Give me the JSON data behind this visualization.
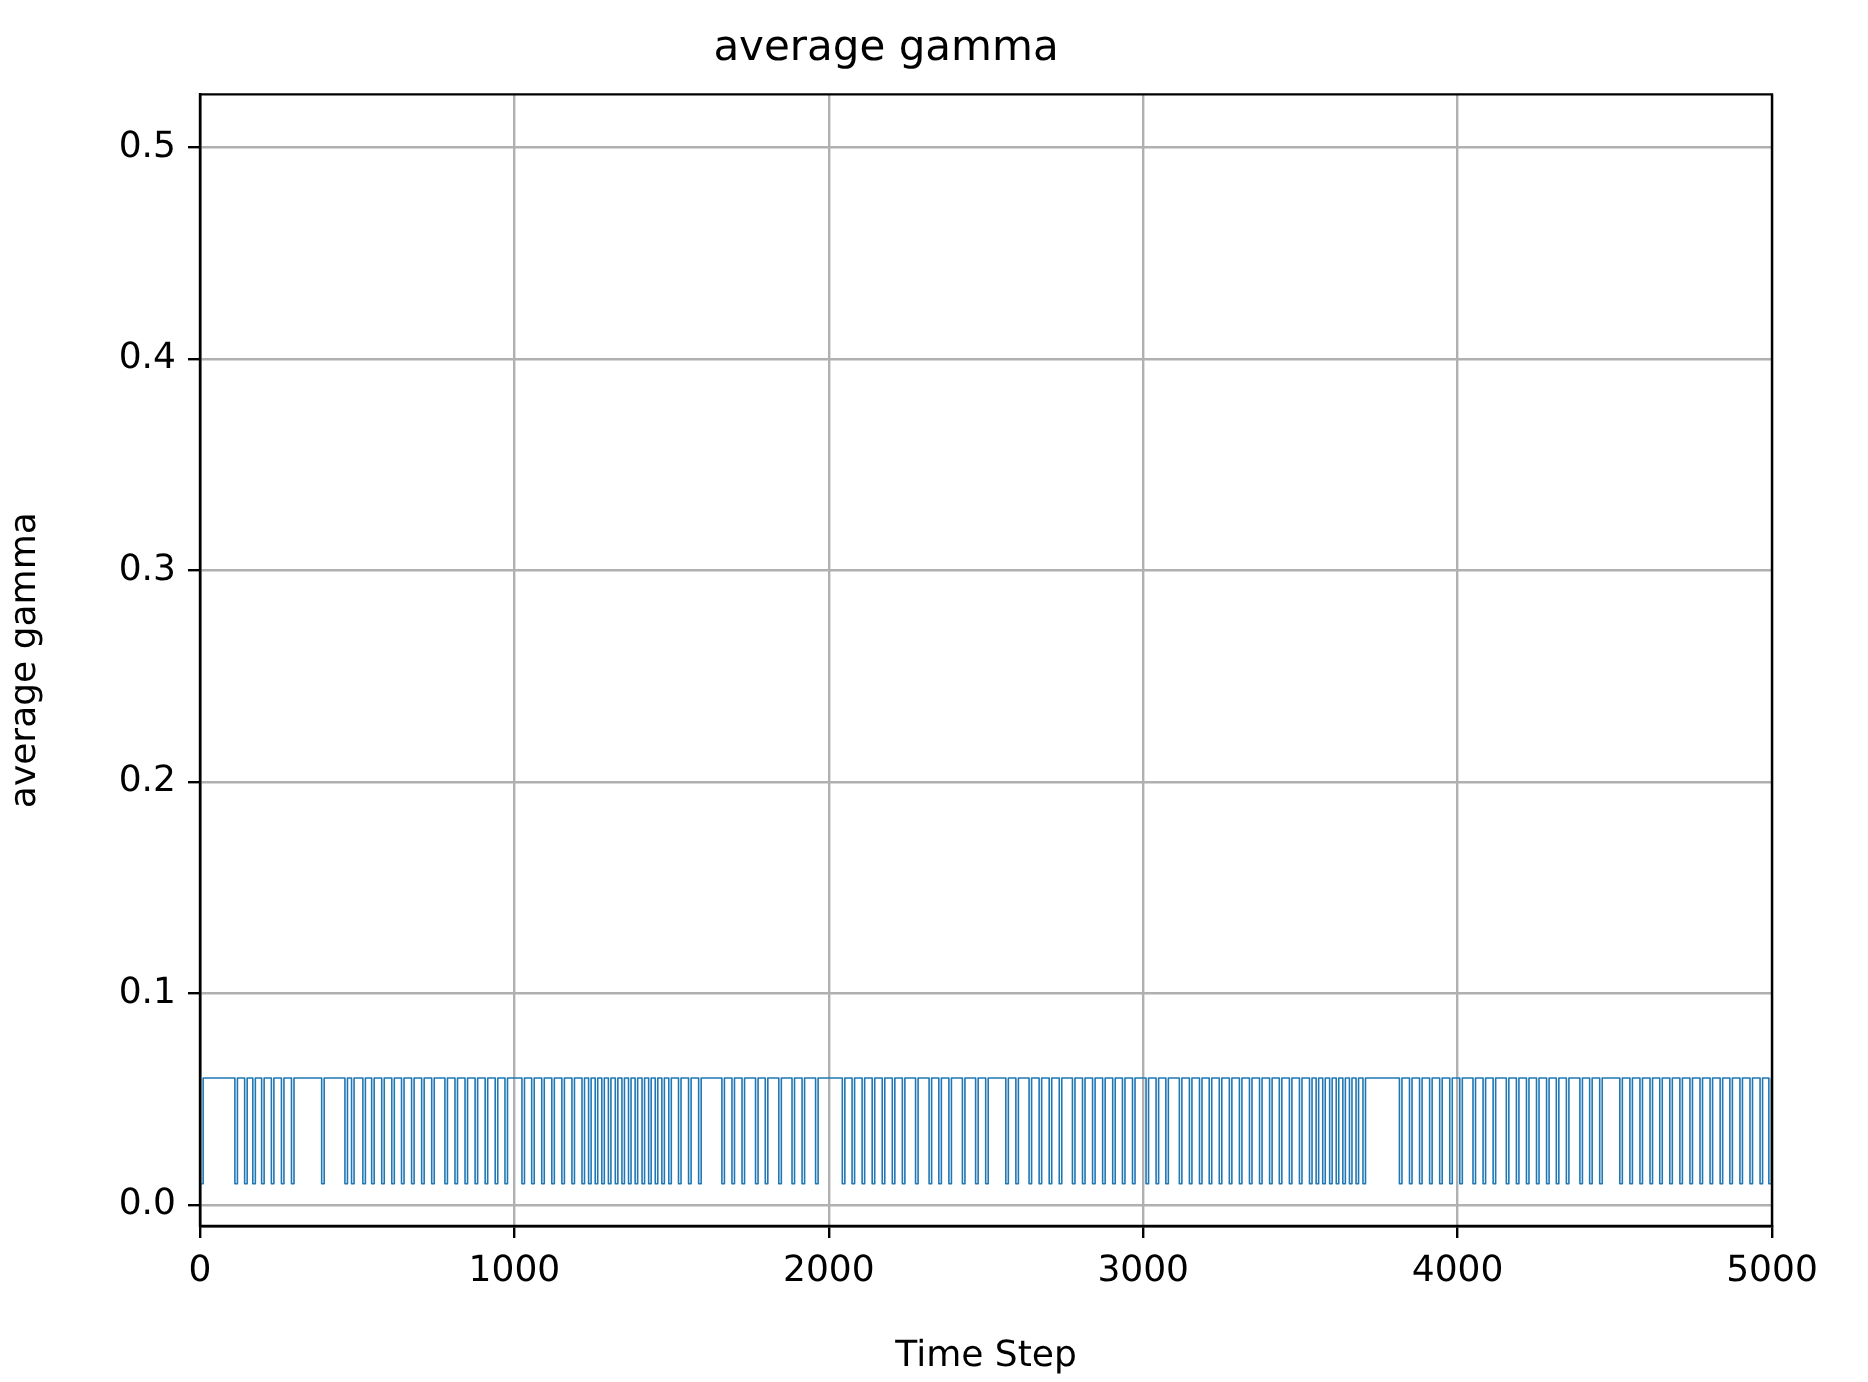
{
  "chart_data": {
    "type": "step",
    "title": "average gamma",
    "xlabel": "Time Step",
    "ylabel": "average gamma",
    "xlim": [
      0,
      5000
    ],
    "xticks": [
      0,
      1000,
      2000,
      3000,
      4000,
      5000
    ],
    "ylim": [
      -0.01,
      0.525
    ],
    "yticks": [
      {
        "value": 0,
        "label": "0.0"
      },
      0.1,
      0.2,
      0.3,
      0.4,
      0.5
    ],
    "grid": true,
    "series": [
      {
        "color": "#1f77b4",
        "x": [
          0,
          10,
          111,
          119,
          142,
          150,
          168,
          176,
          196,
          204,
          227,
          235,
          259,
          267,
          291,
          299,
          387,
          395,
          461,
          469,
          482,
          490,
          518,
          526,
          546,
          554,
          578,
          586,
          610,
          618,
          641,
          649,
          673,
          681,
          705,
          713,
          737,
          745,
          779,
          787,
          811,
          819,
          843,
          851,
          875,
          883,
          907,
          915,
          939,
          947,
          970,
          978,
          1024,
          1032,
          1055,
          1063,
          1087,
          1095,
          1119,
          1127,
          1151,
          1159,
          1183,
          1191,
          1215,
          1223,
          1236,
          1244,
          1257,
          1265,
          1278,
          1286,
          1299,
          1307,
          1321,
          1329,
          1342,
          1350,
          1363,
          1371,
          1384,
          1392,
          1406,
          1414,
          1427,
          1435,
          1448,
          1456,
          1469,
          1477,
          1491,
          1499,
          1522,
          1530,
          1554,
          1562,
          1586,
          1594,
          1660,
          1668,
          1692,
          1700,
          1724,
          1732,
          1767,
          1775,
          1798,
          1806,
          1841,
          1849,
          1883,
          1891,
          1915,
          1923,
          1958,
          1966,
          2043,
          2051,
          2074,
          2082,
          2106,
          2114,
          2138,
          2146,
          2170,
          2178,
          2202,
          2210,
          2234,
          2242,
          2276,
          2284,
          2319,
          2327,
          2350,
          2358,
          2382,
          2390,
          2425,
          2433,
          2467,
          2475,
          2499,
          2507,
          2563,
          2571,
          2595,
          2603,
          2637,
          2645,
          2669,
          2677,
          2701,
          2709,
          2733,
          2741,
          2775,
          2783,
          2807,
          2815,
          2839,
          2847,
          2871,
          2879,
          2903,
          2911,
          2934,
          2942,
          2966,
          2974,
          3009,
          3017,
          3041,
          3049,
          3072,
          3080,
          3115,
          3123,
          3147,
          3155,
          3179,
          3187,
          3210,
          3218,
          3242,
          3250,
          3274,
          3282,
          3306,
          3314,
          3338,
          3346,
          3370,
          3378,
          3402,
          3410,
          3433,
          3441,
          3465,
          3473,
          3497,
          3505,
          3529,
          3537,
          3550,
          3558,
          3571,
          3579,
          3593,
          3601,
          3614,
          3622,
          3635,
          3643,
          3656,
          3664,
          3677,
          3685,
          3699,
          3707,
          3815,
          3823,
          3847,
          3855,
          3879,
          3887,
          3911,
          3919,
          3943,
          3951,
          3975,
          3983,
          4007,
          4015,
          4049,
          4057,
          4081,
          4089,
          4113,
          4121,
          4155,
          4163,
          4187,
          4195,
          4219,
          4227,
          4251,
          4259,
          4283,
          4291,
          4314,
          4322,
          4346,
          4354,
          4389,
          4397,
          4420,
          4428,
          4452,
          4460,
          4516,
          4524,
          4548,
          4556,
          4580,
          4588,
          4612,
          4620,
          4643,
          4651,
          4675,
          4683,
          4707,
          4715,
          4739,
          4747,
          4771,
          4779,
          4803,
          4811,
          4835,
          4843,
          4866,
          4874,
          4898,
          4906,
          4930,
          4938,
          4962,
          4970,
          4990,
          4998,
          4999
        ],
        "values": [
          0.01,
          0.06,
          0.01,
          0.06,
          0.01,
          0.06,
          0.01,
          0.06,
          0.01,
          0.06,
          0.01,
          0.06,
          0.01,
          0.06,
          0.01,
          0.06,
          0.01,
          0.06,
          0.01,
          0.06,
          0.01,
          0.06,
          0.01,
          0.06,
          0.01,
          0.06,
          0.01,
          0.06,
          0.01,
          0.06,
          0.01,
          0.06,
          0.01,
          0.06,
          0.01,
          0.06,
          0.01,
          0.06,
          0.01,
          0.06,
          0.01,
          0.06,
          0.01,
          0.06,
          0.01,
          0.06,
          0.01,
          0.06,
          0.01,
          0.06,
          0.01,
          0.06,
          0.01,
          0.06,
          0.01,
          0.06,
          0.01,
          0.06,
          0.01,
          0.06,
          0.01,
          0.06,
          0.01,
          0.06,
          0.01,
          0.06,
          0.01,
          0.06,
          0.01,
          0.06,
          0.01,
          0.06,
          0.01,
          0.06,
          0.01,
          0.06,
          0.01,
          0.06,
          0.01,
          0.06,
          0.01,
          0.06,
          0.01,
          0.06,
          0.01,
          0.06,
          0.01,
          0.06,
          0.01,
          0.06,
          0.01,
          0.06,
          0.01,
          0.06,
          0.01,
          0.06,
          0.01,
          0.06,
          0.01,
          0.06,
          0.01,
          0.06,
          0.01,
          0.06,
          0.01,
          0.06,
          0.01,
          0.06,
          0.01,
          0.06,
          0.01,
          0.06,
          0.01,
          0.06,
          0.01,
          0.06,
          0.01,
          0.06,
          0.01,
          0.06,
          0.01,
          0.06,
          0.01,
          0.06,
          0.01,
          0.06,
          0.01,
          0.06,
          0.01,
          0.06,
          0.01,
          0.06,
          0.01,
          0.06,
          0.01,
          0.06,
          0.01,
          0.06,
          0.01,
          0.06,
          0.01,
          0.06,
          0.01,
          0.06,
          0.01,
          0.06,
          0.01,
          0.06,
          0.01,
          0.06,
          0.01,
          0.06,
          0.01,
          0.06,
          0.01,
          0.06,
          0.01,
          0.06,
          0.01,
          0.06,
          0.01,
          0.06,
          0.01,
          0.06,
          0.01,
          0.06,
          0.01,
          0.06,
          0.01,
          0.06,
          0.01,
          0.06,
          0.01,
          0.06,
          0.01,
          0.06,
          0.01,
          0.06,
          0.01,
          0.06,
          0.01,
          0.06,
          0.01,
          0.06,
          0.01,
          0.06,
          0.01,
          0.06,
          0.01,
          0.06,
          0.01,
          0.06,
          0.01,
          0.06,
          0.01,
          0.06,
          0.01,
          0.06,
          0.01,
          0.06,
          0.01,
          0.06,
          0.01,
          0.06,
          0.01,
          0.06,
          0.01,
          0.06,
          0.01,
          0.06,
          0.01,
          0.06,
          0.01,
          0.06,
          0.01,
          0.06,
          0.01,
          0.06,
          0.01,
          0.06,
          0.01,
          0.06,
          0.01,
          0.06,
          0.01,
          0.06,
          0.01,
          0.06,
          0.01,
          0.06,
          0.01,
          0.06,
          0.01,
          0.06,
          0.01,
          0.06,
          0.01,
          0.06,
          0.01,
          0.06,
          0.01,
          0.06,
          0.01,
          0.06,
          0.01,
          0.06,
          0.01,
          0.06,
          0.01,
          0.06,
          0.01,
          0.06,
          0.01,
          0.06,
          0.01,
          0.06,
          0.01,
          0.06,
          0.01,
          0.06,
          0.01,
          0.06,
          0.01,
          0.06,
          0.01,
          0.06,
          0.01,
          0.06,
          0.01,
          0.06,
          0.01,
          0.06,
          0.01,
          0.06,
          0.01,
          0.06,
          0.01,
          0.06,
          0.01,
          0.06,
          0.01,
          0.06,
          0.01,
          0.06,
          0.01,
          0.06,
          0.01,
          0.06,
          0.01,
          0.06,
          0.01,
          0.06,
          0.06
        ]
      }
    ]
  }
}
